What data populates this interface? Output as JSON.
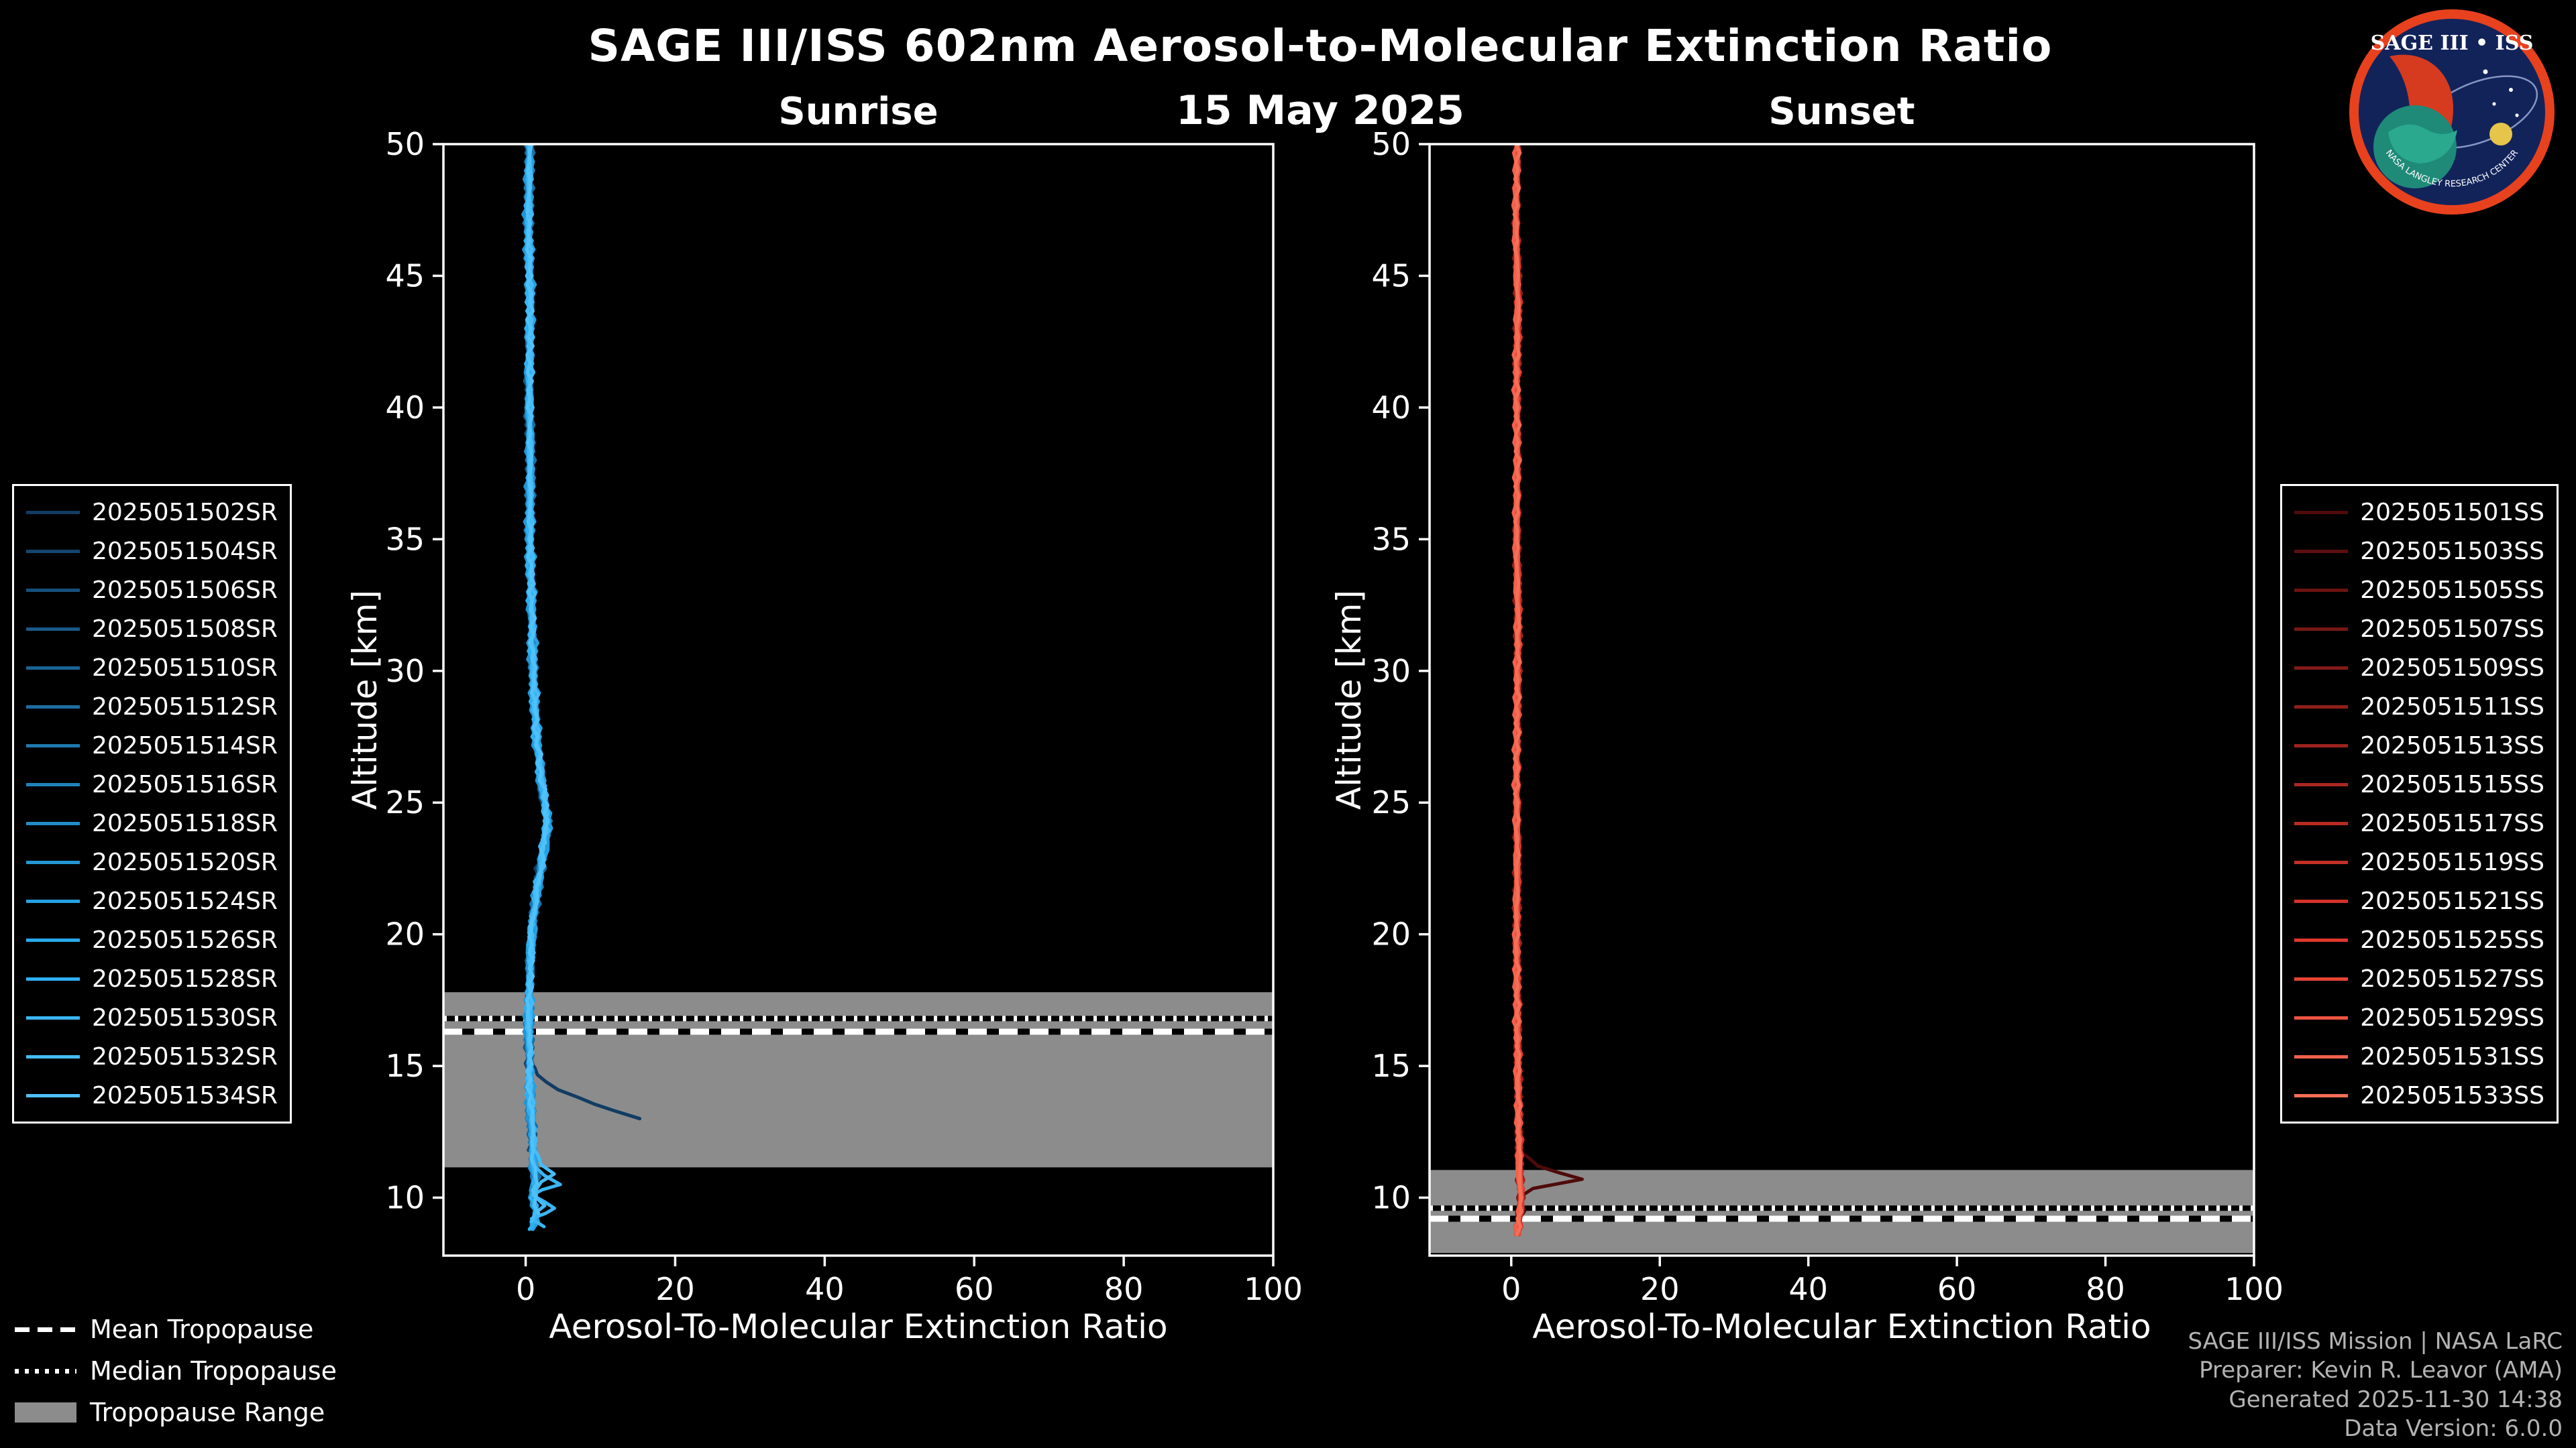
{
  "page": {
    "title": "SAGE III/ISS 602nm Aerosol-to-Molecular Extinction Ratio",
    "date": "15 May 2025"
  },
  "logo": {
    "title": "SAGE III • ISS",
    "ring_text": "NASA LANGLEY RESEARCH CENTER"
  },
  "footer": {
    "lines": [
      "SAGE III/ISS Mission | NASA LaRC",
      "Preparer: Kevin R. Leavor (AMA)",
      "Generated 2025-11-30 14:38",
      "Data Version: 6.0.0"
    ]
  },
  "tropopause_legend": {
    "mean": "Mean Tropopause",
    "median": "Median Tropopause",
    "range": "Tropopause Range"
  },
  "chart_data": [
    {
      "type": "line",
      "title": "Sunrise",
      "xlabel": "Aerosol-To-Molecular Extinction Ratio",
      "ylabel": "Altitude [km]",
      "xlim": [
        -11,
        100
      ],
      "ylim": [
        7.8,
        50
      ],
      "xticks": [
        0,
        20,
        40,
        60,
        80,
        100
      ],
      "yticks": [
        10,
        15,
        20,
        25,
        30,
        35,
        40,
        45,
        50
      ],
      "axis_color": "#ffffff",
      "band_color": "#8c8c8c",
      "jitter": 0.28,
      "tropopause": {
        "mean_km": 16.3,
        "median_km": 16.8,
        "range_km": [
          11.15,
          17.8
        ]
      },
      "profile_base": [
        [
          0.5,
          50
        ],
        [
          0.3,
          47
        ],
        [
          0.6,
          44
        ],
        [
          0.4,
          41
        ],
        [
          0.6,
          38
        ],
        [
          0.5,
          35
        ],
        [
          0.8,
          32
        ],
        [
          1.0,
          29.5
        ],
        [
          1.4,
          27.5
        ],
        [
          2.2,
          25.5
        ],
        [
          2.9,
          24.3
        ],
        [
          2.4,
          23.2
        ],
        [
          1.6,
          21.8
        ],
        [
          0.9,
          20.5
        ],
        [
          0.6,
          19
        ],
        [
          0.4,
          17.5
        ],
        [
          0.4,
          16
        ],
        [
          0.5,
          14.5
        ],
        [
          0.7,
          13
        ],
        [
          0.9,
          11.8
        ],
        [
          1.2,
          10.8
        ],
        [
          0.9,
          10
        ],
        [
          1.4,
          9.4
        ],
        [
          0.8,
          8.8
        ]
      ],
      "series": [
        {
          "name": "2025051502SR",
          "color": "#123c63",
          "points": [
            [
              0.4,
              50
            ],
            [
              0.2,
              47
            ],
            [
              0.5,
              44
            ],
            [
              0.3,
              41
            ],
            [
              0.5,
              38
            ],
            [
              0.4,
              35
            ],
            [
              0.7,
              32
            ],
            [
              0.9,
              29.5
            ],
            [
              1.3,
              27.5
            ],
            [
              2.0,
              25.5
            ],
            [
              2.6,
              24.3
            ],
            [
              2.1,
              23.2
            ],
            [
              1.3,
              21.8
            ],
            [
              0.8,
              20.5
            ],
            [
              0.5,
              19
            ],
            [
              0.3,
              17.5
            ],
            [
              0.4,
              16.2
            ],
            [
              0.6,
              15.2
            ],
            [
              2.5,
              14.4
            ],
            [
              7.0,
              13.8
            ],
            [
              12.0,
              13.3
            ],
            [
              15.3,
              13.0
            ]
          ]
        },
        {
          "name": "2025051504SR",
          "color": "#14466f",
          "dx": -0.1,
          "min_alt": 11.5
        },
        {
          "name": "2025051506SR",
          "color": "#16507c",
          "dx": 0.15,
          "min_alt": 10.8
        },
        {
          "name": "2025051508SR",
          "color": "#185a88",
          "dx": -0.2,
          "min_alt": 10.2
        },
        {
          "name": "2025051510SR",
          "color": "#1a6495",
          "dx": 0.1,
          "min_alt": 9.8
        },
        {
          "name": "2025051512SR",
          "color": "#1c6ea1",
          "dx": 0.25,
          "min_alt": 9.5
        },
        {
          "name": "2025051514SR",
          "color": "#1e78ae",
          "dx": -0.15,
          "min_alt": 9.2
        },
        {
          "name": "2025051516SR",
          "color": "#2082ba",
          "dx": 0.2,
          "min_alt": 9.0
        },
        {
          "name": "2025051518SR",
          "color": "#228cc7",
          "dx": 0.0,
          "min_alt": 8.9
        },
        {
          "name": "2025051520SR",
          "color": "#2496d3",
          "dx": -0.25,
          "min_alt": 8.8
        },
        {
          "name": "2025051524SR",
          "color": "#26a0e0",
          "dx": 0.3,
          "min_alt": 8.8
        },
        {
          "name": "2025051526SR",
          "color": "#28aaec",
          "dx": 0.1,
          "min_alt": 8.7
        },
        {
          "name": "2025051528SR",
          "color": "#2fb0f2",
          "dx": -0.1,
          "min_alt": 8.7
        },
        {
          "name": "2025051530SR",
          "color": "#3ab6f5",
          "points": [
            [
              0.5,
              50
            ],
            [
              0.4,
              46
            ],
            [
              0.6,
              42
            ],
            [
              0.5,
              38
            ],
            [
              0.7,
              34
            ],
            [
              0.9,
              30.5
            ],
            [
              1.5,
              27.5
            ],
            [
              2.6,
              25
            ],
            [
              2.2,
              23
            ],
            [
              1.0,
              21
            ],
            [
              0.6,
              18.5
            ],
            [
              0.5,
              16
            ],
            [
              0.7,
              13.5
            ],
            [
              1.0,
              12
            ],
            [
              0.9,
              11.2
            ],
            [
              4.6,
              10.5
            ],
            [
              0.7,
              10.1
            ],
            [
              3.9,
              9.6
            ],
            [
              0.9,
              9.2
            ],
            [
              2.7,
              8.9
            ]
          ]
        },
        {
          "name": "2025051532SR",
          "color": "#45bcf8",
          "points": [
            [
              0.6,
              50
            ],
            [
              0.5,
              46
            ],
            [
              0.7,
              42
            ],
            [
              0.6,
              38
            ],
            [
              0.8,
              34
            ],
            [
              1.0,
              30.5
            ],
            [
              1.7,
              27
            ],
            [
              2.9,
              24.6
            ],
            [
              2.1,
              22.6
            ],
            [
              0.9,
              20.6
            ],
            [
              0.6,
              18
            ],
            [
              0.5,
              15.5
            ],
            [
              0.9,
              13
            ],
            [
              1.5,
              11.6
            ],
            [
              3.4,
              10.9
            ],
            [
              1.0,
              10.3
            ],
            [
              2.4,
              9.7
            ],
            [
              0.8,
              9.1
            ]
          ]
        },
        {
          "name": "2025051534SR",
          "color": "#50c2fb",
          "dx": 0.05,
          "min_alt": 9.4
        }
      ]
    },
    {
      "type": "line",
      "title": "Sunset",
      "xlabel": "Aerosol-To-Molecular Extinction Ratio",
      "ylabel": "Altitude [km]",
      "xlim": [
        -11,
        100
      ],
      "ylim": [
        7.8,
        50
      ],
      "xticks": [
        0,
        20,
        40,
        60,
        80,
        100
      ],
      "yticks": [
        10,
        15,
        20,
        25,
        30,
        35,
        40,
        45,
        50
      ],
      "axis_color": "#ffffff",
      "band_color": "#8c8c8c",
      "jitter": 0.22,
      "tropopause": {
        "mean_km": 9.2,
        "median_km": 9.6,
        "range_km": [
          7.9,
          11.05
        ]
      },
      "profile_base": [
        [
          0.8,
          50
        ],
        [
          0.6,
          47
        ],
        [
          0.9,
          44
        ],
        [
          0.7,
          41
        ],
        [
          0.8,
          38
        ],
        [
          0.7,
          35
        ],
        [
          0.9,
          32
        ],
        [
          0.8,
          29
        ],
        [
          0.7,
          26
        ],
        [
          0.8,
          23
        ],
        [
          0.7,
          20
        ],
        [
          0.8,
          17
        ],
        [
          0.9,
          14.5
        ],
        [
          1.0,
          12.5
        ],
        [
          1.1,
          11
        ],
        [
          1.3,
          10
        ],
        [
          1.0,
          9.2
        ],
        [
          0.8,
          8.6
        ]
      ],
      "series": [
        {
          "name": "2025051501SS",
          "color": "#4f0b0b",
          "points": [
            [
              0.8,
              50
            ],
            [
              0.7,
              46
            ],
            [
              0.9,
              42
            ],
            [
              0.8,
              38
            ],
            [
              0.7,
              34
            ],
            [
              0.8,
              30
            ],
            [
              0.7,
              26
            ],
            [
              0.8,
              22
            ],
            [
              0.7,
              18
            ],
            [
              0.8,
              15
            ],
            [
              0.9,
              13
            ],
            [
              1.0,
              11.8
            ],
            [
              3.5,
              11.2
            ],
            [
              9.3,
              10.7
            ],
            [
              3.0,
              10.35
            ],
            [
              1.2,
              10.1
            ],
            [
              1.6,
              9.5
            ],
            [
              1.0,
              8.8
            ]
          ]
        },
        {
          "name": "2025051503SS",
          "color": "#5c0f0e",
          "dx": 0.0,
          "min_alt": 8.8
        },
        {
          "name": "2025051505SS",
          "color": "#691311",
          "dx": 0.1,
          "min_alt": 8.7
        },
        {
          "name": "2025051507SS",
          "color": "#761714",
          "dx": -0.1,
          "min_alt": 8.7
        },
        {
          "name": "2025051509SS",
          "color": "#831b17",
          "dx": 0.15,
          "min_alt": 8.6
        },
        {
          "name": "2025051511SS",
          "color": "#901f1a",
          "dx": -0.15,
          "min_alt": 8.6
        },
        {
          "name": "2025051513SS",
          "color": "#9d231d",
          "dx": 0.2,
          "min_alt": 8.6
        },
        {
          "name": "2025051515SS",
          "color": "#aa2720",
          "dx": 0.05,
          "min_alt": 8.6
        },
        {
          "name": "2025051517SS",
          "color": "#b72b23",
          "dx": -0.05,
          "min_alt": 8.6
        },
        {
          "name": "2025051519SS",
          "color": "#c42f26",
          "dx": 0.1,
          "min_alt": 8.6
        },
        {
          "name": "2025051521SS",
          "color": "#d13329",
          "dx": -0.1,
          "min_alt": 8.6
        },
        {
          "name": "2025051525SS",
          "color": "#de372c",
          "dx": 0.2,
          "min_alt": 8.6
        },
        {
          "name": "2025051527SS",
          "color": "#e64535",
          "dx": 0.0,
          "min_alt": 8.6
        },
        {
          "name": "2025051529SS",
          "color": "#ec5340",
          "dx": 0.1,
          "min_alt": 8.6
        },
        {
          "name": "2025051531SS",
          "color": "#f1614b",
          "dx": -0.2,
          "min_alt": 8.6
        },
        {
          "name": "2025051533SS",
          "color": "#f56f56",
          "dx": 0.05,
          "min_alt": 8.6
        }
      ]
    }
  ]
}
